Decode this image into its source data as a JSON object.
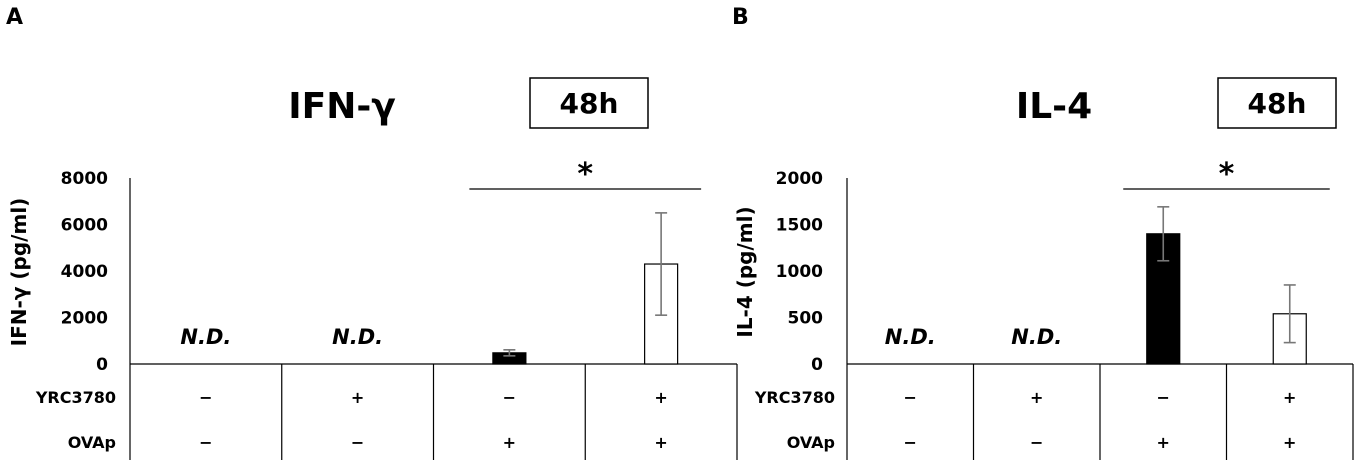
{
  "chart_data": [
    {
      "type": "bar",
      "panel": "A",
      "title": "IFN-γ",
      "time_label": "48h",
      "ylabel": "IFN-γ (pg/ml)",
      "ylim": [
        0,
        8000
      ],
      "yticks": [
        "8000",
        "6000",
        "4000",
        "2000",
        "0"
      ],
      "ytick_values": [
        8000,
        6000,
        4000,
        2000,
        0
      ],
      "categories": [
        "1",
        "2",
        "3",
        "4"
      ],
      "values": [
        0,
        0,
        480,
        4300
      ],
      "errors": [
        0,
        0,
        130,
        2200
      ],
      "bar_colors": [
        "",
        "",
        "#000000",
        "#ffffff"
      ],
      "bar_labels": [
        "N.D.",
        "N.D.",
        "",
        ""
      ],
      "significance": {
        "label": "*",
        "from": 2,
        "to": 3
      },
      "treatment_rows": [
        {
          "label": "YRC3780",
          "cells": [
            "−",
            "+",
            "−",
            "+"
          ]
        },
        {
          "label": "OVAp",
          "cells": [
            "−",
            "−",
            "+",
            "+"
          ]
        }
      ]
    },
    {
      "type": "bar",
      "panel": "B",
      "title": "IL-4",
      "time_label": "48h",
      "ylabel": "IL-4 (pg/ml)",
      "ylim": [
        0,
        2000
      ],
      "yticks": [
        "2000",
        "1500",
        "1000",
        "500",
        "0"
      ],
      "ytick_values": [
        2000,
        1500,
        1000,
        500,
        0
      ],
      "categories": [
        "1",
        "2",
        "3",
        "4"
      ],
      "values": [
        0,
        0,
        1400,
        540
      ],
      "errors": [
        0,
        0,
        290,
        310
      ],
      "bar_colors": [
        "",
        "",
        "#000000",
        "#ffffff"
      ],
      "bar_labels": [
        "N.D.",
        "N.D.",
        "",
        ""
      ],
      "significance": {
        "label": "*",
        "from": 2,
        "to": 3
      },
      "treatment_rows": [
        {
          "label": "YRC3780",
          "cells": [
            "−",
            "+",
            "−",
            "+"
          ]
        },
        {
          "label": "OVAp",
          "cells": [
            "−",
            "−",
            "+",
            "+"
          ]
        }
      ]
    }
  ]
}
